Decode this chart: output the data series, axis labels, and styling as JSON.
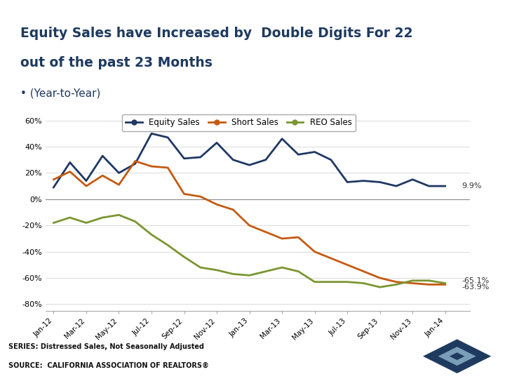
{
  "title_line1": "Equity Sales have Increased by  Double Digits For 22",
  "title_line2": "out of the past 23 Months",
  "subtitle": "• (Year-to-Year)",
  "header_bg": "#1e3a5f",
  "title_color": "#1e3a5f",
  "series_labels": [
    "Equity Sales",
    "Short Sales",
    "REO Sales"
  ],
  "series_colors": [
    "#1f3864",
    "#c55a11",
    "#7a9632"
  ],
  "yticks": [
    -80,
    -60,
    -40,
    -20,
    0,
    20,
    40,
    60
  ],
  "ylim": [
    -85,
    68
  ],
  "annotation_equity": "9.9%",
  "annotation_short": "-65.1%",
  "annotation_reo": "-63.9%",
  "footer_line1": "SERIES: Distressed Sales, Not Seasonally Adjusted",
  "footer_line2": "SOURCE:  CALIFORNIA ASSOCIATION OF REALTORS®",
  "bg_color": "#ffffff",
  "months_equity": [
    0,
    1,
    2,
    3,
    4,
    5,
    6,
    7,
    8,
    9,
    10,
    11,
    12,
    13,
    14,
    15,
    16,
    17,
    18,
    19,
    20,
    21,
    22,
    23,
    24
  ],
  "equity_vals": [
    9,
    28,
    14,
    33,
    20,
    27,
    50,
    47,
    31,
    32,
    43,
    30,
    26,
    30,
    46,
    34,
    36,
    30,
    13,
    14,
    13,
    10,
    15,
    10,
    10
  ],
  "months_short": [
    0,
    1,
    2,
    3,
    4,
    5,
    6,
    7,
    8,
    9,
    10,
    11,
    12,
    13,
    14,
    15,
    16,
    17,
    18,
    19,
    20,
    21,
    22,
    23,
    24
  ],
  "short_vals": [
    15,
    21,
    10,
    18,
    11,
    29,
    25,
    24,
    4,
    2,
    -4,
    -8,
    -20,
    -25,
    -30,
    -29,
    -40,
    -45,
    -50,
    -55,
    -60,
    -63,
    -64,
    -65,
    -65
  ],
  "months_reo": [
    0,
    1,
    2,
    3,
    4,
    5,
    6,
    7,
    8,
    9,
    10,
    11,
    12,
    13,
    14,
    15,
    16,
    17,
    18,
    19,
    20,
    21,
    22,
    23,
    24
  ],
  "reo_vals": [
    -18,
    -14,
    -18,
    -14,
    -12,
    -17,
    -27,
    -35,
    -44,
    -52,
    -54,
    -57,
    -58,
    -55,
    -52,
    -55,
    -63,
    -63,
    -63,
    -64,
    -67,
    -65,
    -62,
    -62,
    -64
  ],
  "tick_pos": [
    0,
    2,
    4,
    6,
    8,
    10,
    12,
    14,
    16,
    18,
    20,
    22,
    24
  ],
  "tick_labels": [
    "Jan-12",
    "Mar-12",
    "May-12",
    "Jul-12",
    "Sep-12",
    "Nov-12",
    "Jan-13",
    "Mar-13",
    "May-13",
    "Jul-13",
    "Sep-13",
    "Nov-13",
    "Jan-14"
  ]
}
